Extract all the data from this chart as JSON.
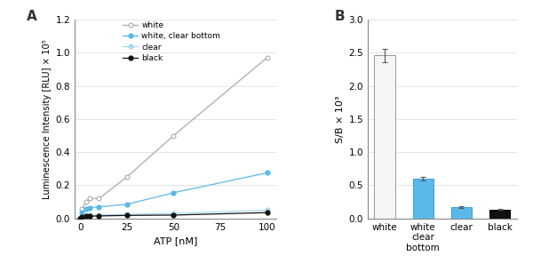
{
  "panel_A": {
    "atp_x": [
      0,
      1,
      3,
      5,
      10,
      25,
      50,
      100
    ],
    "white_y": [
      0.003,
      0.055,
      0.1,
      0.12,
      0.12,
      0.25,
      0.5,
      0.97
    ],
    "white_cb_y": [
      0.002,
      0.035,
      0.055,
      0.065,
      0.07,
      0.085,
      0.155,
      0.275
    ],
    "clear_y": [
      0.001,
      0.01,
      0.015,
      0.018,
      0.02,
      0.025,
      0.03,
      0.05
    ],
    "black_y": [
      0.0,
      0.008,
      0.012,
      0.013,
      0.015,
      0.018,
      0.02,
      0.035
    ],
    "white_color": "#aaaaaa",
    "white_cb_color": "#5bb8e8",
    "clear_color": "#a8d8f0",
    "black_color": "#111111",
    "xlabel": "ATP [nM]",
    "ylabel": "Luminescence Intensity [RLU] × 10⁵",
    "ylim": [
      0,
      1.2
    ],
    "yticks": [
      0.0,
      0.2,
      0.4,
      0.6,
      0.8,
      1.0,
      1.2
    ],
    "xticks": [
      0,
      25,
      50,
      75,
      100
    ],
    "xlim": [
      -3,
      105
    ]
  },
  "panel_B": {
    "categories": [
      "white",
      "white\nclear\nbottom",
      "clear",
      "black"
    ],
    "values": [
      2.46,
      0.6,
      0.175,
      0.135
    ],
    "errors": [
      0.1,
      0.025,
      0.015,
      0.007
    ],
    "bar_colors": [
      "#f5f5f5",
      "#5bb8e8",
      "#5bb8e8",
      "#111111"
    ],
    "bar_edgecolors": [
      "#999999",
      "#3a9fd8",
      "#3a9fd8",
      "#000000"
    ],
    "ylabel": "S/B × 10³",
    "ylim": [
      0,
      3.0
    ],
    "yticks": [
      0.0,
      0.5,
      1.0,
      1.5,
      2.0,
      2.5,
      3.0
    ]
  },
  "label_A": "A",
  "label_B": "B",
  "bg_color": "#ffffff"
}
